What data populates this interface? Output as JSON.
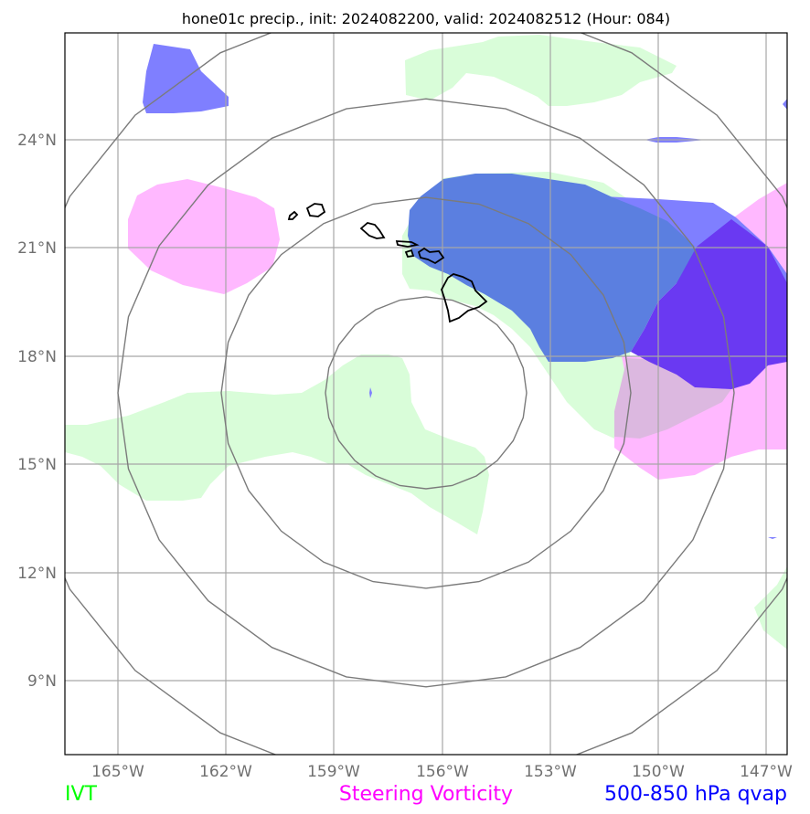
{
  "title": "hone01c precip., init: 2024082200, valid: 2024082512 (Hour: 084)",
  "colors": {
    "ivt": "#00ff00",
    "ivt_fill": "#d9fdd9",
    "vorticity": "#ff00ff",
    "vorticity_fill": "#ffb8ff",
    "qvap": "#0000ff",
    "qvap_fill_light": "#7f7fff",
    "qvap_fill_mid": "#5b7fe0",
    "qvap_fill_dark": "#6a39f2",
    "overlap_pink": "#dcb8e0",
    "grid": "#a6a6a6",
    "range_ring": "#7b7b7b",
    "coast": "#000000"
  },
  "map": {
    "lat_labels": [
      "24°N",
      "21°N",
      "18°N",
      "15°N",
      "12°N",
      "9°N"
    ],
    "lon_labels": [
      "165°W",
      "162°W",
      "159°W",
      "156°W",
      "153°W",
      "150°W",
      "147°W"
    ]
  },
  "legend": {
    "ivt": "IVT",
    "vorticity": "Steering Vorticity",
    "qvap": "500-850 hPa qvap"
  }
}
